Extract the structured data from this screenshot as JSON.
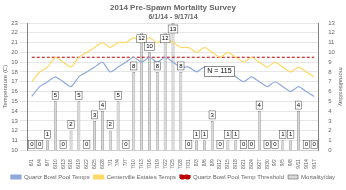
{
  "chart_data": {
    "type": "bar",
    "title": "2014 Pre-Spawn Mortality Survey",
    "subtitle": "6/1/14 - 9/17/14",
    "y_label": "Temperature (C)",
    "y2_label": "mortalities/day",
    "annotation": "N = 115",
    "categories": [
      "6/1",
      "6/4",
      "6/7",
      "6/10",
      "6/13",
      "6/16",
      "6/19",
      "6/22",
      "6/25",
      "6/28",
      "7/1",
      "7/4",
      "7/7",
      "7/10",
      "7/13",
      "7/16",
      "7/19",
      "7/22",
      "7/25",
      "7/28",
      "7/31",
      "8/3",
      "8/6",
      "8/9",
      "8/12",
      "8/15",
      "8/18",
      "8/21",
      "8/24",
      "8/27",
      "8/30",
      "9/2",
      "9/5",
      "9/8",
      "9/11",
      "9/14",
      "9/17"
    ],
    "series": [
      {
        "name": "Mortality/day",
        "type": "bar",
        "axis": "y2",
        "color": "#d9d9d9",
        "values": [
          0,
          0,
          1,
          5,
          0,
          2,
          5,
          0,
          3,
          4,
          2,
          5,
          0,
          8,
          12,
          10,
          8,
          12,
          13,
          8,
          0,
          1,
          1,
          3,
          0,
          1,
          1,
          0,
          0,
          4,
          0,
          0,
          1,
          1,
          4,
          0,
          0
        ]
      },
      {
        "name": "Quartz Bowl Pool Temps",
        "type": "line",
        "color": "#8ea9db",
        "values": [
          15.5,
          16.5,
          17.0,
          17.5,
          17.0,
          16.5,
          17.5,
          18.0,
          18.5,
          19.0,
          18.0,
          18.5,
          19.0,
          19.5,
          19.0,
          19.5,
          19.0,
          19.5,
          19.0,
          18.5,
          18.5,
          18.0,
          18.5,
          18.0,
          17.5,
          18.0,
          17.5,
          17.0,
          17.5,
          17.0,
          16.5,
          17.0,
          16.5,
          16.0,
          16.5,
          16.0,
          15.5
        ]
      },
      {
        "name": "Centerville Estates Temps",
        "type": "line",
        "color": "#ffd966",
        "values": [
          17.0,
          18.0,
          18.5,
          19.5,
          19.0,
          18.5,
          19.5,
          20.0,
          20.5,
          21.0,
          20.5,
          21.0,
          21.0,
          21.5,
          21.0,
          21.5,
          21.0,
          21.5,
          21.0,
          20.5,
          20.5,
          20.0,
          20.5,
          20.0,
          19.5,
          20.0,
          19.5,
          19.0,
          19.5,
          19.0,
          18.5,
          19.0,
          18.5,
          18.0,
          18.5,
          18.0,
          17.5
        ]
      },
      {
        "name": "Quartz Bowl Pool Temp Threshold",
        "type": "line",
        "color": "#c00000",
        "line_style": "dashed",
        "values": [
          19.5,
          19.5,
          19.5,
          19.5,
          19.5,
          19.5,
          19.5,
          19.5,
          19.5,
          19.5,
          19.5,
          19.5,
          19.5,
          19.5,
          19.5,
          19.5,
          19.5,
          19.5,
          19.5,
          19.5,
          19.5,
          19.5,
          19.5,
          19.5,
          19.5,
          19.5,
          19.5,
          19.5,
          19.5,
          19.5,
          19.5,
          19.5,
          19.5,
          19.5,
          19.5,
          19.5,
          19.5
        ]
      }
    ],
    "ylim": [
      10,
      23
    ],
    "yticks": [
      10,
      11,
      12,
      13,
      14,
      15,
      16,
      17,
      18,
      19,
      20,
      21,
      22,
      23
    ],
    "y2lim": [
      0,
      13
    ],
    "y2ticks": [
      0,
      1,
      2,
      3,
      4,
      5,
      6,
      7,
      8,
      9,
      10,
      11,
      12,
      13
    ],
    "grid": true,
    "legend": "bottom",
    "data_labels": true
  }
}
